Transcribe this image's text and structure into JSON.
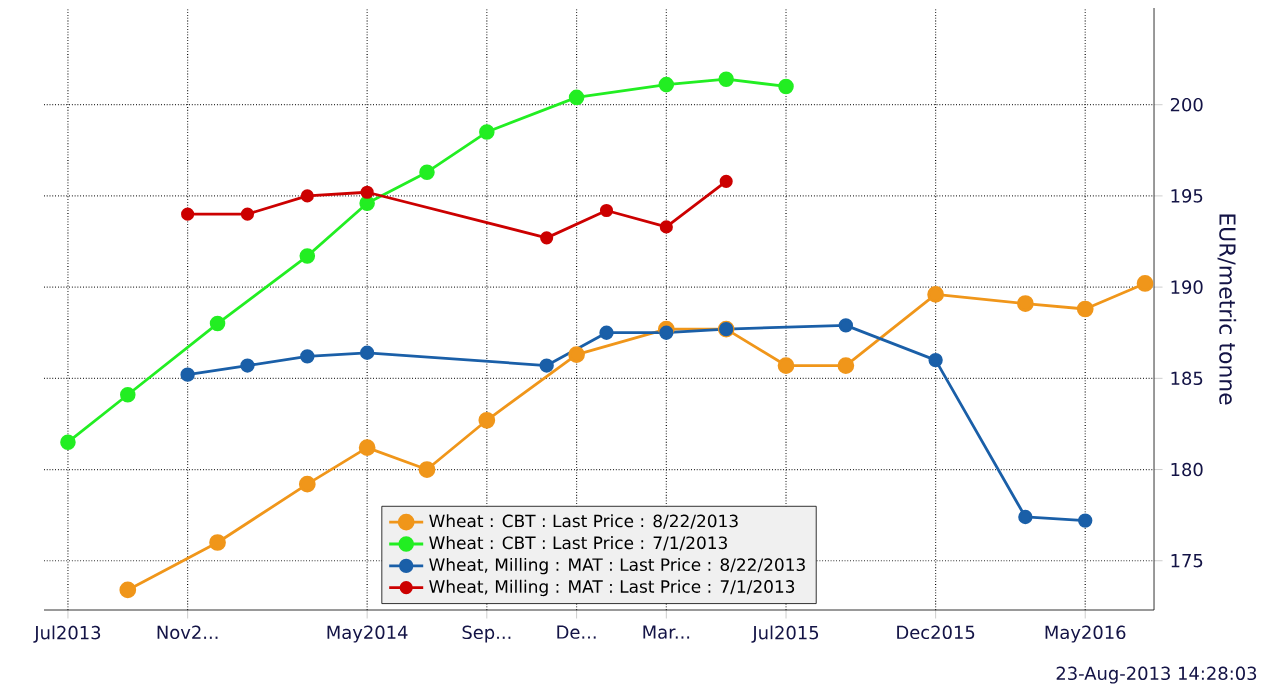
{
  "chart_data": {
    "type": "line",
    "ylabel": "EUR/metric tonne",
    "annotations": [
      "23-Aug-2013 14:28:03"
    ],
    "xlim": [
      "2013-06-07",
      "2016-07-10"
    ],
    "ylim": [
      172.3,
      205.3
    ],
    "xticks": [
      {
        "value": "2013-07",
        "label": "Jul2013"
      },
      {
        "value": "2013-11",
        "label": "Nov2..."
      },
      {
        "value": "2014-05",
        "label": "May2014"
      },
      {
        "value": "2014-09",
        "label": "Sep..."
      },
      {
        "value": "2014-12",
        "label": "De..."
      },
      {
        "value": "2015-03",
        "label": "Mar..."
      },
      {
        "value": "2015-07",
        "label": "Jul2015"
      },
      {
        "value": "2015-12",
        "label": "Dec2015"
      },
      {
        "value": "2016-05",
        "label": "May2016"
      }
    ],
    "yticks": [
      175,
      180,
      185,
      190,
      195,
      200
    ],
    "grid": true,
    "legend": "bottom",
    "marker": "circle",
    "line_style": "solid",
    "series": [
      {
        "name": "Wheat : CBT : Last Price : 8/22/2013",
        "color": "#f0961a",
        "x": [
          "2013-09",
          "2013-12",
          "2014-03",
          "2014-05",
          "2014-07",
          "2014-09",
          "2014-12",
          "2015-03",
          "2015-05",
          "2015-07",
          "2015-09",
          "2015-12",
          "2016-03",
          "2016-05",
          "2016-07"
        ],
        "values": [
          173.4,
          176.0,
          179.2,
          181.2,
          180.0,
          182.7,
          186.3,
          187.7,
          187.7,
          185.7,
          185.7,
          189.6,
          189.1,
          188.8,
          190.2
        ]
      },
      {
        "name": "Wheat : CBT : Last Price : 7/1/2013",
        "color": "#22ee22",
        "x": [
          "2013-07",
          "2013-09",
          "2013-12",
          "2014-03",
          "2014-05",
          "2014-07",
          "2014-09",
          "2014-12",
          "2015-03",
          "2015-05",
          "2015-07"
        ],
        "values": [
          181.5,
          184.1,
          188.0,
          191.7,
          194.6,
          196.3,
          198.5,
          200.4,
          201.1,
          201.4,
          201.0
        ]
      },
      {
        "name": "Wheat, Milling : MAT : Last Price : 8/22/2013",
        "color": "#1a5fa8",
        "x": [
          "2013-11",
          "2014-01",
          "2014-03",
          "2014-05",
          "2014-11",
          "2015-01",
          "2015-03",
          "2015-05",
          "2015-09",
          "2015-12",
          "2016-03",
          "2016-05"
        ],
        "values": [
          185.2,
          185.7,
          186.2,
          186.4,
          185.7,
          187.5,
          187.5,
          187.7,
          187.9,
          186.0,
          177.4,
          177.2
        ]
      },
      {
        "name": "Wheat, Milling : MAT : Last Price : 7/1/2013",
        "color": "#cc0000",
        "x": [
          "2013-11",
          "2014-01",
          "2014-03",
          "2014-05",
          "2014-11",
          "2015-01",
          "2015-03",
          "2015-05"
        ],
        "values": [
          194.0,
          194.0,
          195.0,
          195.2,
          192.7,
          194.2,
          193.3,
          195.8
        ]
      }
    ]
  }
}
